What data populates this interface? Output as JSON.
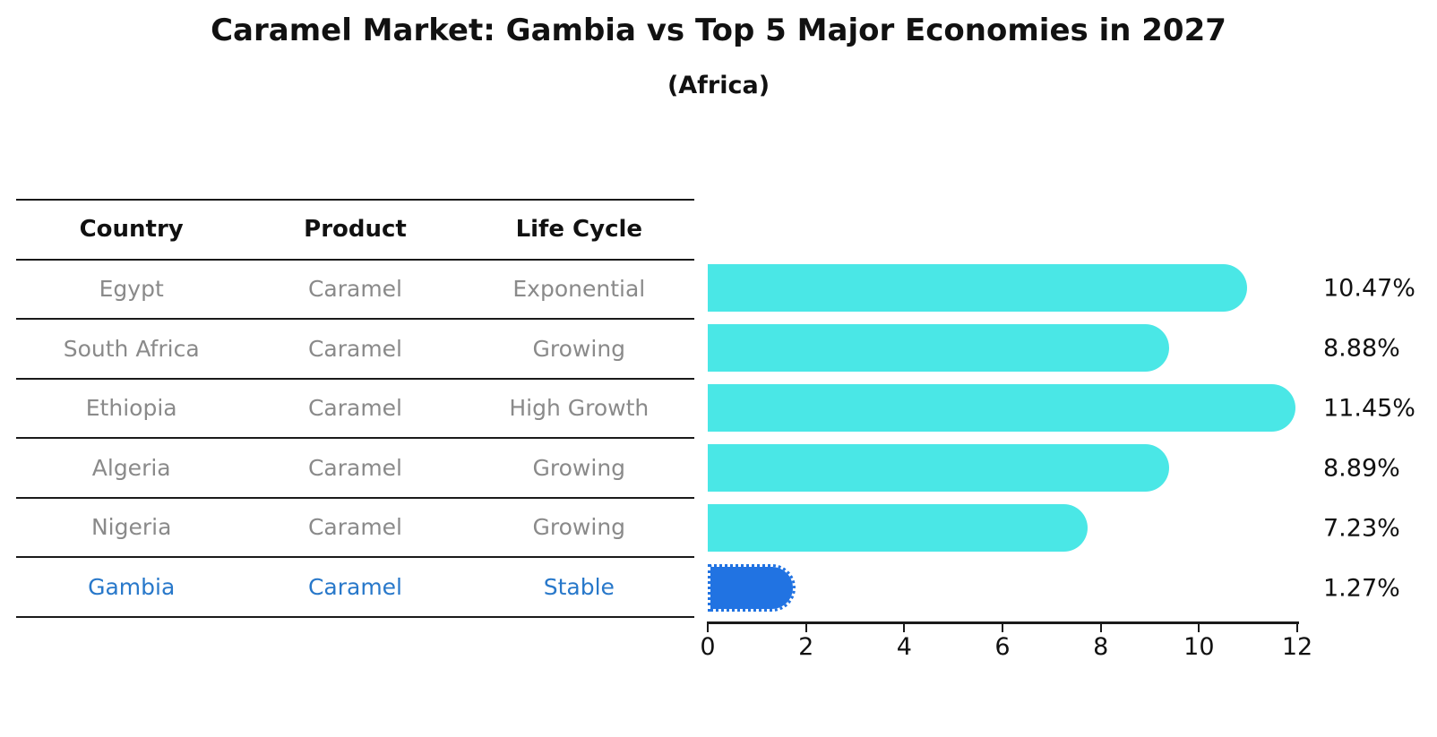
{
  "title": "Caramel Market: Gambia vs Top 5 Major Economies in 2027",
  "subtitle": "(Africa)",
  "table": {
    "headers": [
      "Country",
      "Product",
      "Life Cycle"
    ],
    "rows": [
      {
        "country": "Egypt",
        "product": "Caramel",
        "life_cycle": "Exponential",
        "highlight": false
      },
      {
        "country": "South Africa",
        "product": "Caramel",
        "life_cycle": "Growing",
        "highlight": false
      },
      {
        "country": "Ethiopia",
        "product": "Caramel",
        "life_cycle": "High Growth",
        "highlight": false
      },
      {
        "country": "Algeria",
        "product": "Caramel",
        "life_cycle": "Growing",
        "highlight": false
      },
      {
        "country": "Nigeria",
        "product": "Caramel",
        "life_cycle": "Growing",
        "highlight": false
      },
      {
        "country": "Gambia",
        "product": "Caramel",
        "life_cycle": "Stable",
        "highlight": true
      }
    ]
  },
  "chart_data": {
    "type": "bar",
    "orientation": "horizontal",
    "title": "Caramel Market: Gambia vs Top 5 Major Economies in 2027",
    "subtitle": "(Africa)",
    "categories": [
      "Egypt",
      "South Africa",
      "Ethiopia",
      "Algeria",
      "Nigeria",
      "Gambia"
    ],
    "values": [
      10.47,
      8.88,
      11.45,
      8.89,
      7.23,
      1.27
    ],
    "value_labels": [
      "10.47%",
      "8.88%",
      "11.45%",
      "8.89%",
      "7.23%",
      "1.27%"
    ],
    "xlim": [
      0,
      12
    ],
    "x_ticks": [
      "0",
      "2",
      "4",
      "6",
      "8",
      "10",
      "12"
    ],
    "highlight_index": 5,
    "grid": false,
    "legend": "none"
  },
  "colors": {
    "bar": "#4ae7e6",
    "highlight_bar": "#2173e2",
    "highlight_text": "#2878ca",
    "table_text": "#8a8a8a",
    "heading_text": "#111111",
    "axis": "#1a1a1a"
  }
}
